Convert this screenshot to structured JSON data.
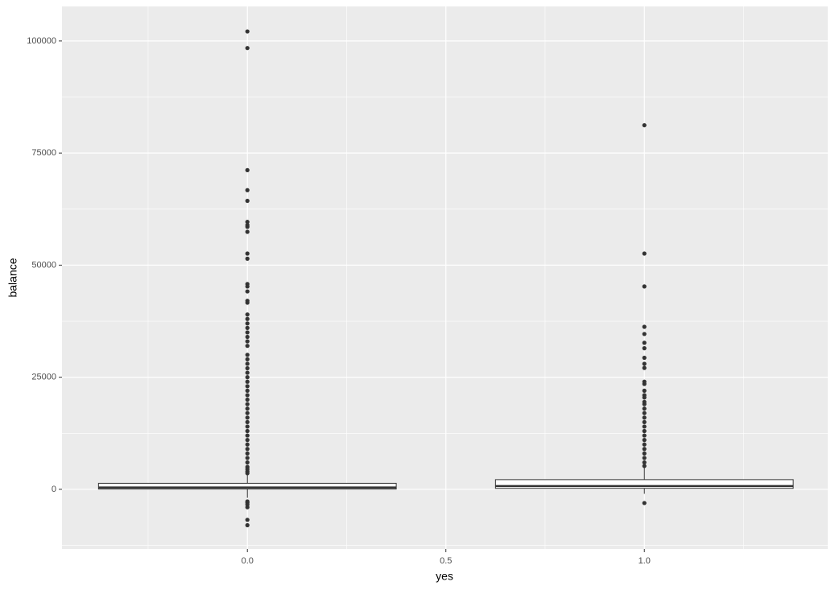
{
  "chart_data": {
    "type": "box",
    "x_label": "yes",
    "y_label": "balance",
    "xlim": [
      -0.467,
      1.462
    ],
    "xticks": [
      {
        "value": 0,
        "label": "0.0"
      },
      0.5,
      {
        "value": 1,
        "label": "1.0"
      }
    ],
    "minor_xticks": [
      -0.25,
      0.25,
      0.75,
      1.25
    ],
    "ylim": [
      -13300,
      107700
    ],
    "yticks": [
      0,
      25000,
      50000,
      75000,
      100000
    ],
    "minor_yticks": [
      -12500,
      12500,
      37500,
      62500,
      87500
    ],
    "grid": true,
    "panel_color": "#ebebeb",
    "box_fill": "#ffffff",
    "line_color": "#333333",
    "boxes": [
      {
        "x": 0,
        "min": -1900,
        "q1": 58,
        "median": 417,
        "q3": 1345,
        "max": 3460,
        "outliers": [
          102127,
          98417,
          71188,
          66721,
          64343,
          59649,
          58932,
          58544,
          57435,
          52587,
          51439,
          45789,
          45248,
          44134,
          42045,
          41630,
          39000,
          38000,
          37000,
          36000,
          35000,
          34000,
          33000,
          32000,
          30000,
          29000,
          28000,
          27000,
          26000,
          25000,
          24000,
          23000,
          22000,
          21000,
          20000,
          19000,
          18000,
          17000,
          16000,
          15000,
          14000,
          13000,
          12000,
          11000,
          10000,
          9000,
          8000,
          7000,
          6000,
          5000,
          4500,
          4000,
          3600,
          -2700,
          -3000,
          -3400,
          -4000,
          -6800,
          -8000
        ]
      },
      {
        "x": 1,
        "min": -1000,
        "q1": 210,
        "median": 733,
        "q3": 2159,
        "max": 5080,
        "outliers": [
          81204,
          52587,
          45248,
          36252,
          34646,
          32685,
          31472,
          29340,
          28000,
          27069,
          24000,
          23500,
          22000,
          21000,
          20500,
          19500,
          19000,
          18000,
          17000,
          16000,
          15000,
          14000,
          13000,
          12000,
          11000,
          10000,
          9000,
          8000,
          7000,
          6000,
          5200,
          -3058
        ]
      }
    ]
  }
}
